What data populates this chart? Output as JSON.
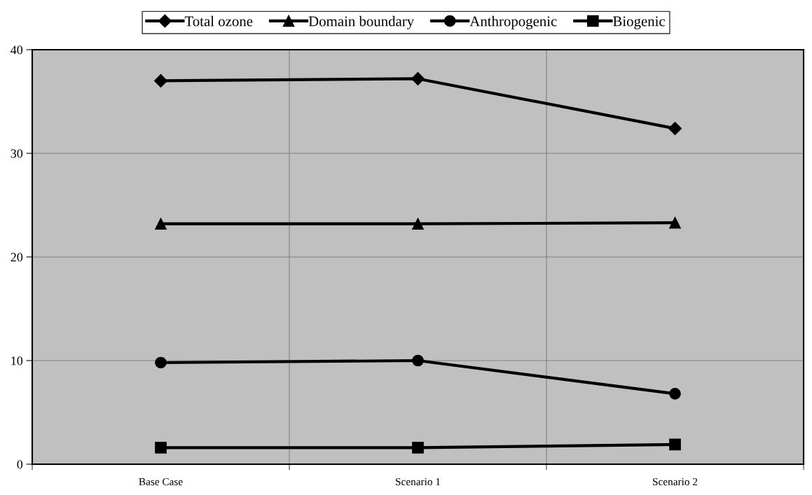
{
  "chart_data": {
    "type": "line",
    "categories": [
      "Base Case",
      "Scenario 1",
      "Scenario 2"
    ],
    "series": [
      {
        "name": "Total ozone",
        "color": "#000000",
        "marker": "diamond",
        "values": [
          37.0,
          37.2,
          32.4
        ]
      },
      {
        "name": "Domain boundary",
        "color": "#000000",
        "marker": "triangle",
        "values": [
          23.2,
          23.2,
          23.3
        ]
      },
      {
        "name": "Anthropogenic",
        "color": "#000000",
        "marker": "circle",
        "values": [
          9.8,
          10.0,
          6.8
        ]
      },
      {
        "name": "Biogenic",
        "color": "#000000",
        "marker": "square",
        "values": [
          1.6,
          1.6,
          1.9
        ]
      }
    ],
    "ylim": [
      0,
      40
    ],
    "yticks": [
      0,
      10,
      20,
      30,
      40
    ],
    "grid": true,
    "legend": "top",
    "line_style": "solid"
  }
}
